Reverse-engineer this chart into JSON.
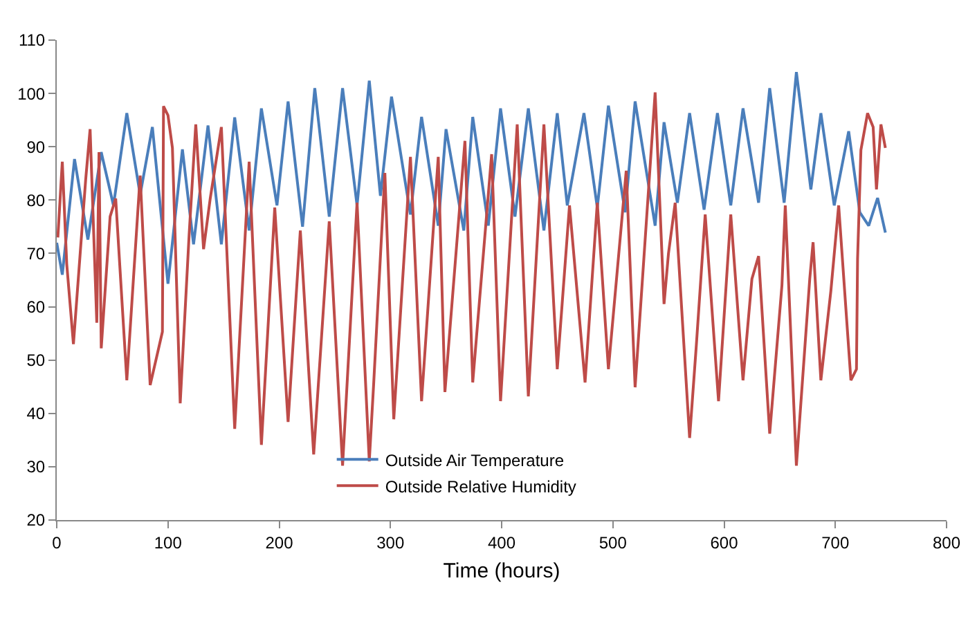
{
  "chart_data": {
    "type": "line",
    "xlabel": "Time (hours)",
    "xlim": [
      0,
      800
    ],
    "xticks": [
      0,
      100,
      200,
      300,
      400,
      500,
      600,
      700,
      800
    ],
    "ylim": [
      20,
      110
    ],
    "yticks": [
      20,
      30,
      40,
      50,
      60,
      70,
      80,
      90,
      100,
      110
    ],
    "grid": false,
    "legend": "bottom",
    "marker": "none",
    "line_style": "solid",
    "series": [
      {
        "name": "Outside Air Temperature",
        "color": "#4a7ebb",
        "x": [
          0,
          5,
          16,
          28,
          40,
          51,
          63,
          75,
          86,
          100,
          113,
          123,
          136,
          148,
          160,
          173,
          184,
          198,
          208,
          221,
          232,
          245,
          257,
          270,
          281,
          291,
          301,
          318,
          328,
          343,
          350,
          366,
          374,
          388,
          399,
          412,
          424,
          438,
          450,
          459,
          474,
          486,
          496,
          511,
          520,
          538,
          546,
          558,
          569,
          582,
          594,
          606,
          617,
          631,
          641,
          654,
          665,
          678,
          687,
          699,
          712,
          722,
          730,
          738,
          745
        ],
        "values": [
          72,
          66,
          87.7,
          72.6,
          89,
          79,
          96.3,
          81,
          93.7,
          64.3,
          89.5,
          71.7,
          94,
          71.7,
          95.5,
          74.3,
          97.2,
          79,
          98.5,
          75,
          101,
          76.9,
          101,
          79,
          102.4,
          80.8,
          99.4,
          77.3,
          95.6,
          75.2,
          93.3,
          74.3,
          95.6,
          75.2,
          97.2,
          76.9,
          97.2,
          74.3,
          96.3,
          79,
          96.3,
          78.6,
          97.7,
          77.7,
          98.5,
          75.2,
          94.6,
          79.5,
          96.3,
          78.2,
          96.3,
          79,
          97.2,
          79.5,
          101,
          79.5,
          104,
          82,
          96.3,
          79,
          92.9,
          77.7,
          75.2,
          80.4,
          73.9
        ]
      },
      {
        "name": "Outside Relative Humidity",
        "color": "#be4b48",
        "x": [
          1,
          5,
          9,
          15,
          26,
          30,
          36,
          38,
          40,
          48,
          53,
          63,
          75,
          84,
          95,
          96,
          100,
          104,
          111,
          119,
          125,
          132,
          138,
          148,
          160,
          173,
          184,
          196,
          208,
          219,
          231,
          245,
          257,
          270,
          281,
          285,
          295,
          303,
          318,
          328,
          343,
          349,
          367,
          374,
          391,
          399,
          414,
          424,
          438,
          450,
          461,
          475,
          486,
          496,
          512,
          520,
          538,
          546,
          550,
          556,
          569,
          575,
          583,
          595,
          606,
          617,
          625,
          631,
          641,
          652,
          655,
          665,
          677,
          680,
          687,
          696,
          703,
          714,
          719,
          720,
          723,
          729,
          734,
          737,
          741,
          745
        ],
        "values": [
          73,
          87.2,
          68,
          53,
          83.8,
          93.3,
          57,
          89,
          52.2,
          76.9,
          80.3,
          46.2,
          84.6,
          45.3,
          55.3,
          97.6,
          95.9,
          89.8,
          41.9,
          73.4,
          94.2,
          70.8,
          80.3,
          93.7,
          37.1,
          87.2,
          34.1,
          78.6,
          38.4,
          74.3,
          32.3,
          76,
          30.2,
          79.5,
          31,
          45.8,
          85.1,
          38.9,
          88.1,
          42.3,
          88.1,
          44,
          91.1,
          45.8,
          88.6,
          42.3,
          94.2,
          43.2,
          94.2,
          48.3,
          79,
          45.8,
          79.5,
          48.3,
          85.5,
          44.9,
          100.2,
          60.5,
          70,
          79.5,
          35.4,
          52.7,
          77.3,
          42.3,
          77.3,
          46.2,
          65.2,
          69.5,
          36.2,
          64,
          79,
          30.2,
          65.2,
          72.1,
          46.2,
          63,
          79,
          46.2,
          48.3,
          69,
          89.4,
          96.3,
          93.7,
          82,
          94.2,
          89.8
        ]
      }
    ]
  }
}
